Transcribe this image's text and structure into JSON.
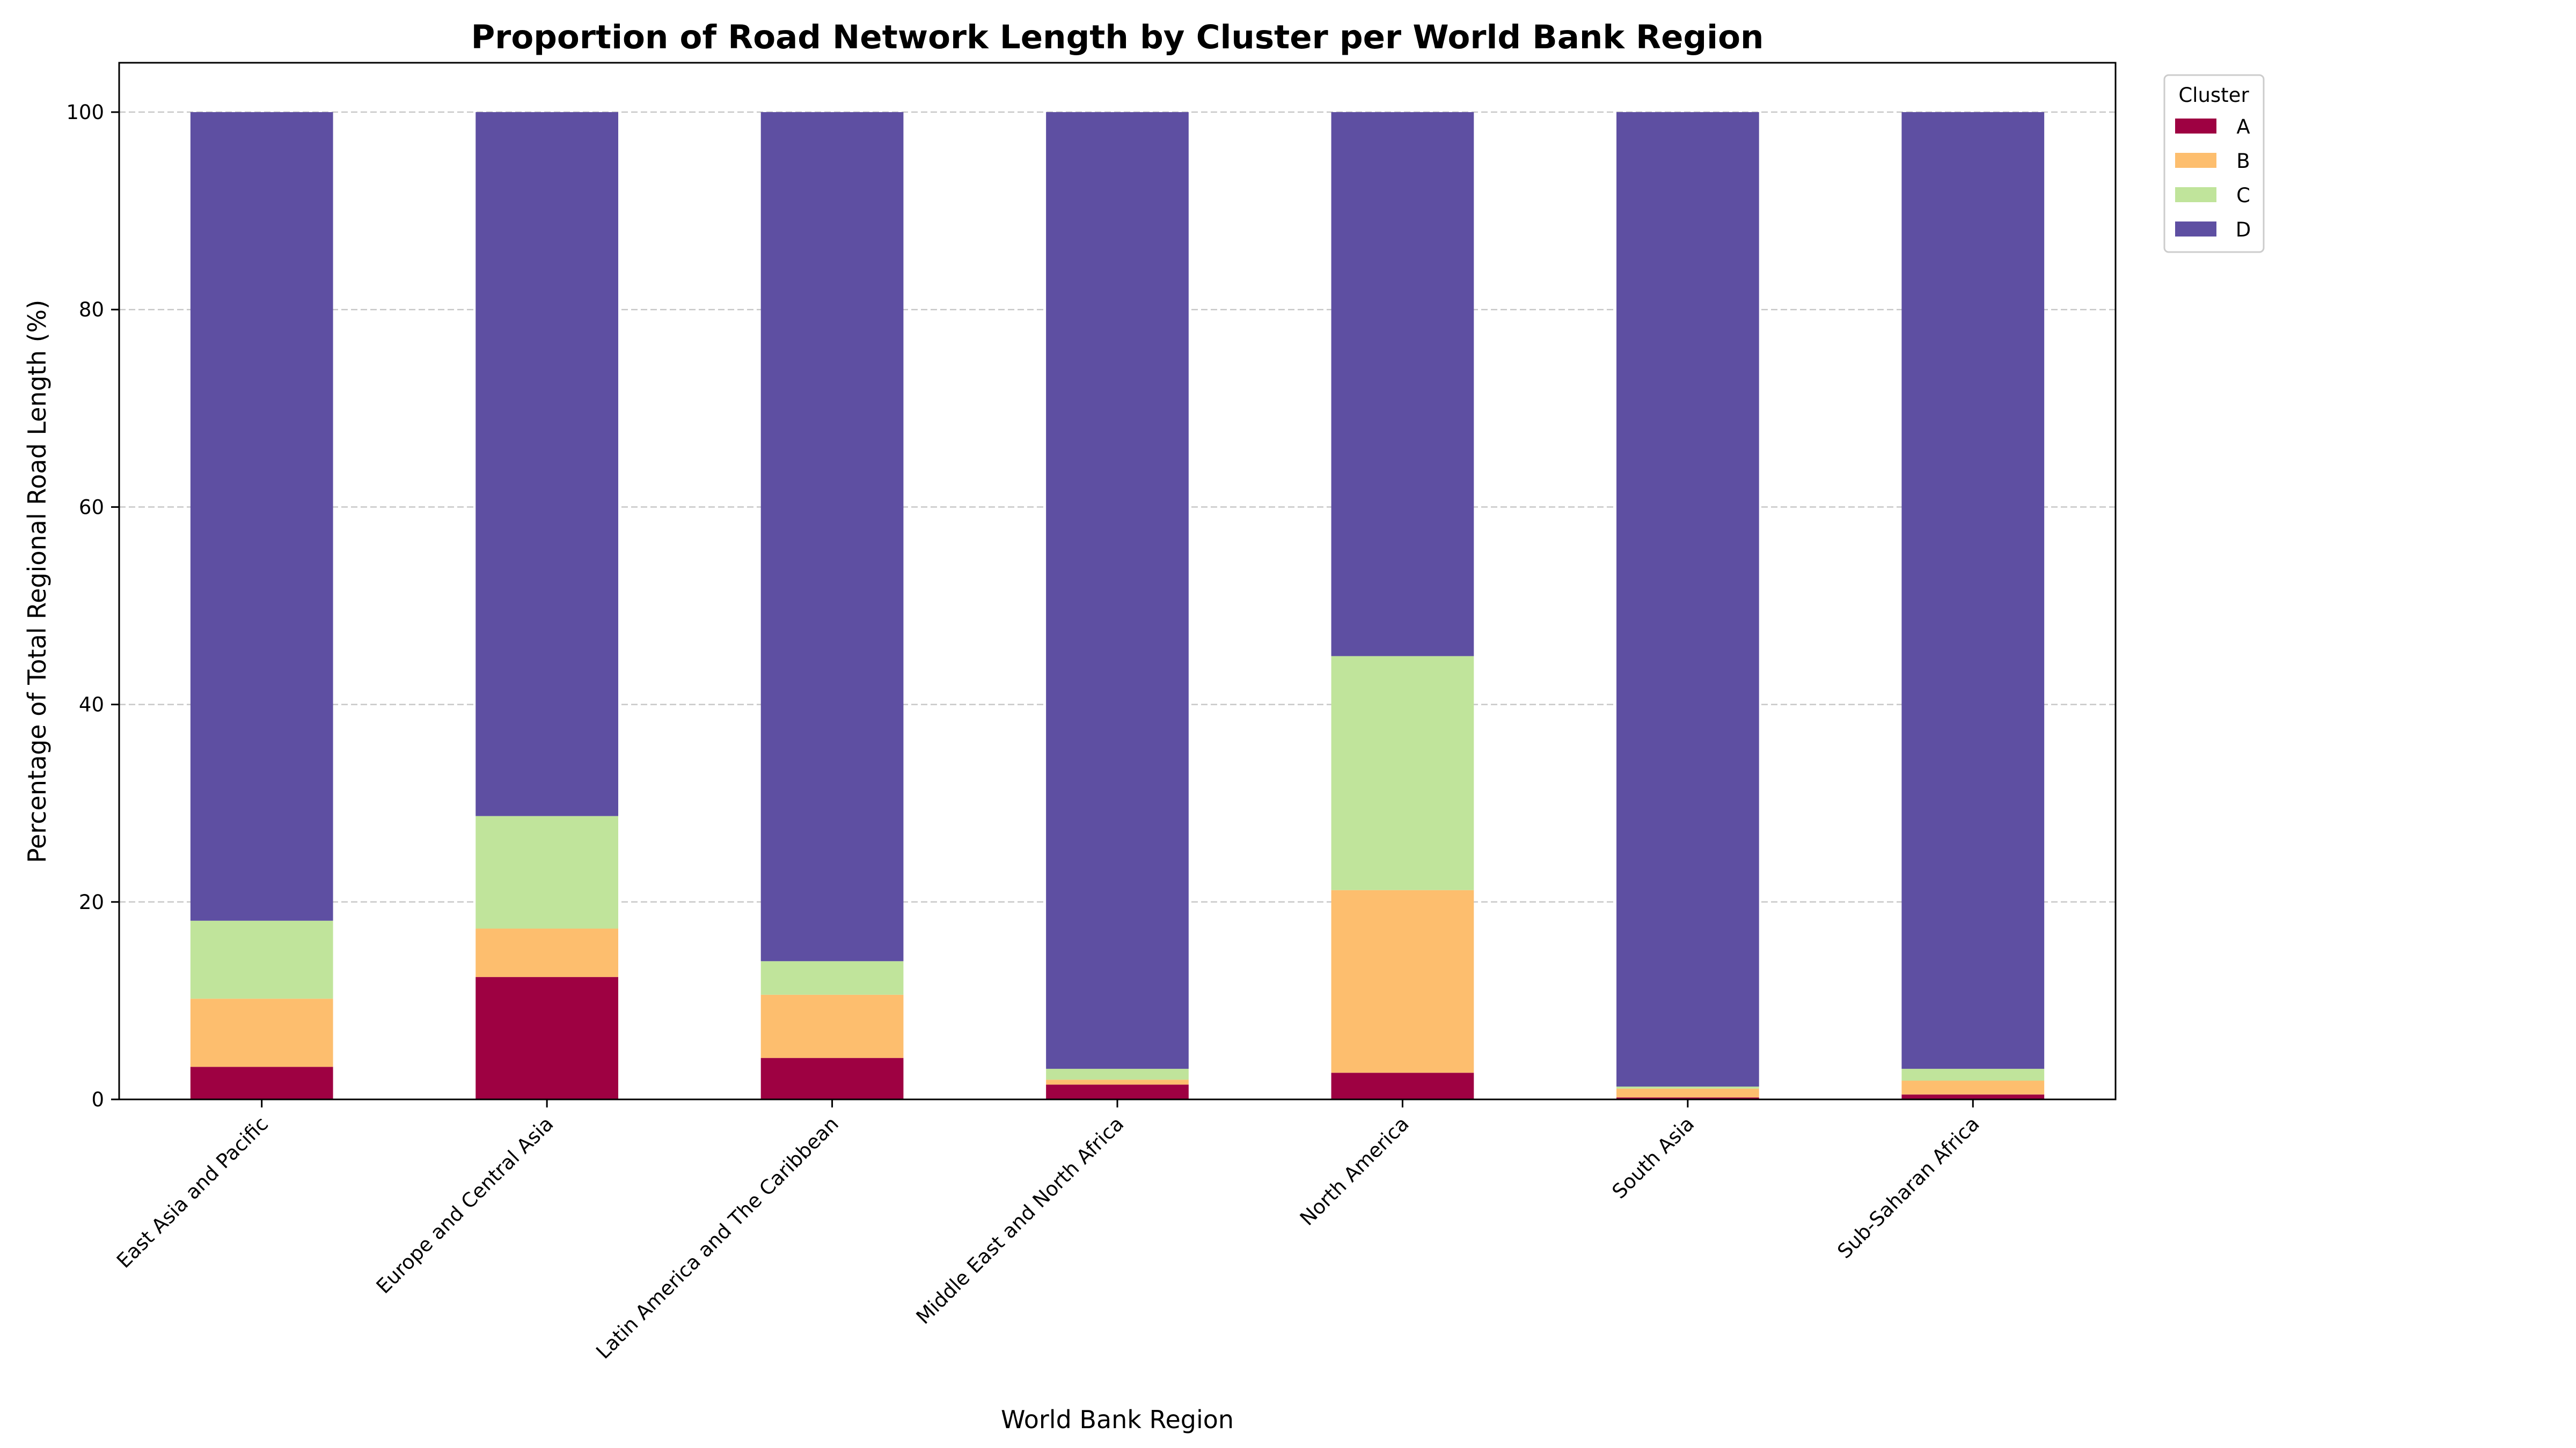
{
  "chart_data": {
    "type": "bar",
    "stacked": true,
    "title": "Proportion of Road Network Length by Cluster per World Bank Region",
    "xlabel": "World Bank Region",
    "ylabel": "Percentage of Total Regional Road Length (%)",
    "ylim": [
      0,
      105
    ],
    "yticks": [
      0,
      20,
      40,
      60,
      80,
      100
    ],
    "grid": "horizontal-dashed",
    "legend": {
      "title": "Cluster",
      "placement": "outside-top-right"
    },
    "categories": [
      "East Asia and Pacific",
      "Europe and Central Asia",
      "Latin America and The Caribbean",
      "Middle East and North Africa",
      "North America",
      "South Asia",
      "Sub-Saharan Africa"
    ],
    "series": [
      {
        "name": "A",
        "color": "#9e0142",
        "values": [
          3.3,
          12.4,
          4.2,
          1.5,
          2.7,
          0.2,
          0.5
        ]
      },
      {
        "name": "B",
        "color": "#fdbe6e",
        "values": [
          6.9,
          4.9,
          6.4,
          0.5,
          18.5,
          0.9,
          1.4
        ]
      },
      {
        "name": "C",
        "color": "#c0e49b",
        "values": [
          7.9,
          11.4,
          3.4,
          1.1,
          23.7,
          0.2,
          1.2
        ]
      },
      {
        "name": "D",
        "color": "#5e4fa2",
        "values": [
          81.9,
          71.3,
          86.0,
          96.9,
          55.1,
          98.7,
          96.9
        ]
      }
    ]
  }
}
